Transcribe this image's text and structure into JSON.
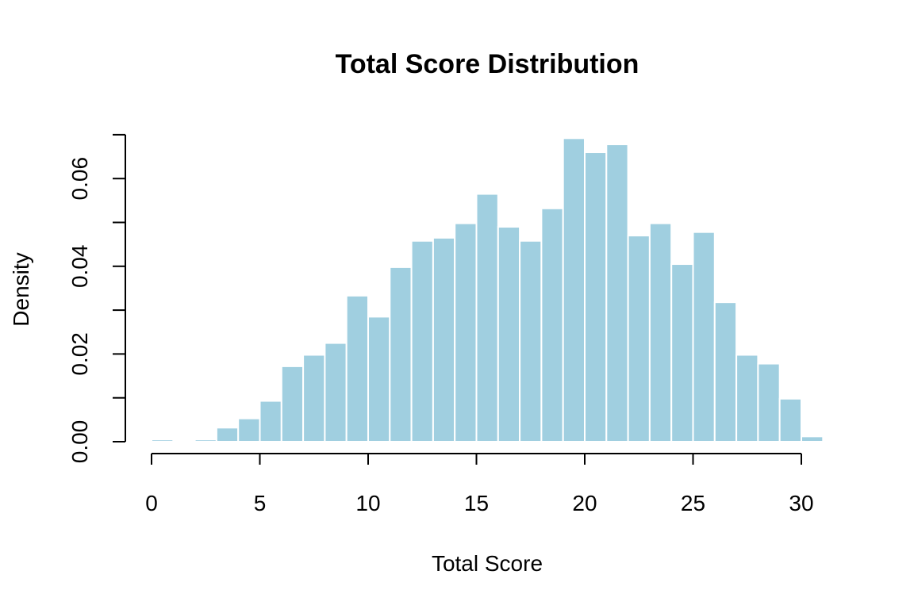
{
  "chart_data": {
    "type": "bar",
    "title": "Total Score Distribution",
    "xlabel": "Total Score",
    "ylabel": "Density",
    "bar_color": "#a0cfe0",
    "xlim": [
      0,
      31
    ],
    "ylim": [
      0,
      0.07
    ],
    "x_ticks": [
      0,
      5,
      10,
      15,
      20,
      25,
      30
    ],
    "x_tick_labels": [
      "0",
      "5",
      "10",
      "15",
      "20",
      "25",
      "30"
    ],
    "y_ticks": [
      0,
      0.02,
      0.04,
      0.06
    ],
    "y_tick_labels": [
      "0.00",
      "0.02",
      "0.04",
      "0.06"
    ],
    "y_minor_ticks": [
      0.01,
      0.03,
      0.05,
      0.07
    ],
    "bin_edges": [
      0,
      1,
      2,
      3,
      4,
      5,
      6,
      7,
      8,
      9,
      10,
      11,
      12,
      13,
      14,
      15,
      16,
      17,
      18,
      19,
      20,
      21,
      22,
      23,
      24,
      25,
      26,
      27,
      28,
      29,
      30,
      31
    ],
    "values": [
      0.0005,
      0.0,
      0.0005,
      0.0032,
      0.0053,
      0.0093,
      0.0172,
      0.0198,
      0.0225,
      0.0333,
      0.0285,
      0.0398,
      0.0458,
      0.0465,
      0.0498,
      0.0565,
      0.049,
      0.0458,
      0.0532,
      0.0692,
      0.066,
      0.0678,
      0.047,
      0.0498,
      0.0405,
      0.0478,
      0.0318,
      0.0198,
      0.0178,
      0.0098,
      0.0012
    ],
    "grid": false,
    "legend": "none"
  }
}
